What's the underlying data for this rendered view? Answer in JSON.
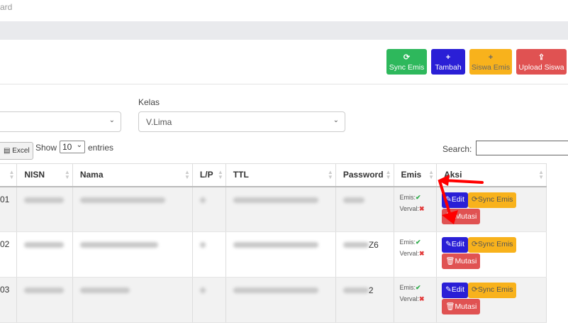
{
  "breadcrumb": "ard",
  "toolbar": [
    {
      "label": "Sync Emis",
      "icon": "refresh-icon",
      "glyph": "⟳",
      "color": "#2eb85c"
    },
    {
      "label": "Tambah",
      "icon": "plus-icon",
      "glyph": "+",
      "color": "#2a1fd6"
    },
    {
      "label": "Siswa Emis",
      "icon": "plus-icon",
      "glyph": "+",
      "color": "#f8b21c"
    },
    {
      "label": "Upload Siswa",
      "icon": "upload-icon",
      "glyph": "⇪",
      "color": "#e05252"
    }
  ],
  "filters": {
    "kelas_label": "Kelas",
    "kelas_value": "V.Lima"
  },
  "controls": {
    "excel": "Excel",
    "show": "Show",
    "entries_value": "10",
    "entries": "entries",
    "search": "Search:"
  },
  "table": {
    "headers": [
      "NISN",
      "Nama",
      "L/P",
      "TTL",
      "Password",
      "Emis",
      "Aksi"
    ],
    "rows": [
      {
        "no": "01",
        "password_suffix": ""
      },
      {
        "no": "02",
        "password_suffix": "Z6"
      },
      {
        "no": "03",
        "password_suffix": "2"
      }
    ],
    "emis_label": "Emis:",
    "verval_label": "Verval:",
    "edit": "Edit",
    "sync": "Sync Emis",
    "mutasi": "Mutasi"
  }
}
